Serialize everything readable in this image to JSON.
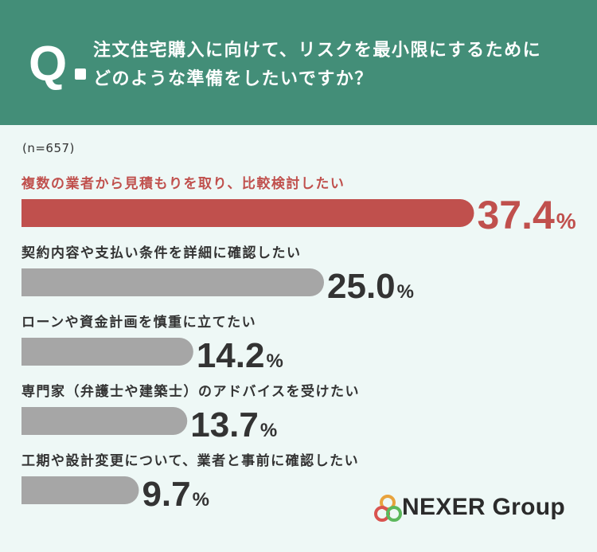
{
  "question": {
    "mark": "Q",
    "line1": "注文住宅購入に向けて、リスクを最小限にするために",
    "line2": "どのような準備をしたいですか？"
  },
  "sample_size": "(n=657)",
  "chart_data": {
    "type": "bar",
    "orientation": "horizontal",
    "categories": [
      "複数の業者から見積もりを取り、比較検討したい",
      "契約内容や支払い条件を詳細に確認したい",
      "ローンや資金計画を慎重に立てたい",
      "専門家（弁護士や建築士）のアドバイスを受けたい",
      "工期や設計変更について、業者と事前に確認したい"
    ],
    "values": [
      37.4,
      25.0,
      14.2,
      13.7,
      9.7
    ],
    "value_labels": [
      "37.4",
      "25.0",
      "14.2",
      "13.7",
      "9.7"
    ],
    "unit": "%",
    "xlim": [
      0,
      40
    ],
    "highlight_color": "#c0504d",
    "bar_color": "#a6a6a6",
    "grid": false
  },
  "logo": {
    "text": "NEXER Group",
    "icon": "three-rings-logo-icon",
    "colors": [
      "#e8a33d",
      "#d9534f",
      "#5cb85c"
    ]
  },
  "colors": {
    "header": "#438e78",
    "background": "#eef8f6",
    "text": "#333333"
  }
}
